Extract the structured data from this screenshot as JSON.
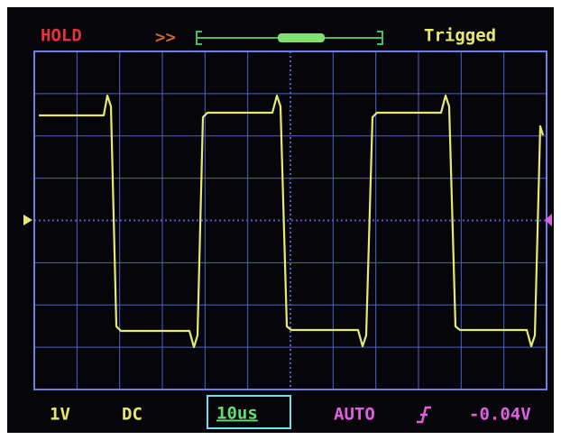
{
  "status": {
    "mode": "HOLD",
    "arrows": ">>",
    "trigger_state": "Trigged"
  },
  "footer": {
    "volts_per_div": "1V",
    "coupling": "DC",
    "time_per_div": "10us",
    "trigger_mode": "AUTO",
    "trigger_level": "-0.04V"
  }
}
